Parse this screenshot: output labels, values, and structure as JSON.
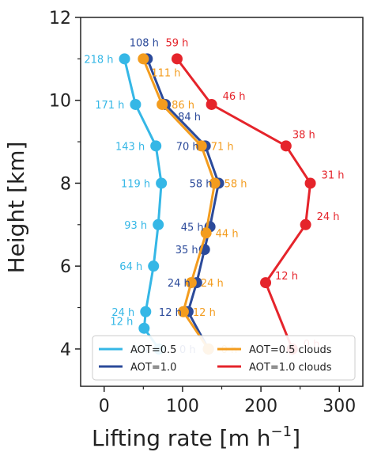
{
  "chart_data": {
    "type": "line",
    "xlabel_main": "Lifting rate [m h",
    "xlabel_sup": "−1",
    "xlabel_close": "]",
    "ylabel": "Height [km]",
    "xlim": [
      -30,
      330
    ],
    "ylim": [
      3.1,
      12
    ],
    "xticks": [
      "0",
      "100",
      "200",
      "300"
    ],
    "xtick_values": [
      0,
      100,
      200,
      300
    ],
    "yticks": [
      "4",
      "6",
      "8",
      "10",
      "12"
    ],
    "ytick_values": [
      4,
      6,
      8,
      10,
      12
    ],
    "grid": false,
    "legend_position": "lower-center",
    "legend_ncol": 2,
    "series": [
      {
        "name": "AOT=0.5",
        "color": "#35b7e6",
        "x": [
          70,
          51,
          53,
          63,
          69,
          73,
          66,
          40,
          26
        ],
        "y": [
          4.0,
          4.5,
          4.9,
          6.0,
          7.0,
          8.0,
          8.9,
          9.9,
          11.0
        ],
        "labels": [
          "0 h",
          "12 h",
          "24 h",
          "64 h",
          "93 h",
          "119 h",
          "143 h",
          "171 h",
          "218 h"
        ]
      },
      {
        "name": "AOT=1.0",
        "color": "#2b4a9a",
        "x": [
          133,
          107,
          118,
          128,
          135,
          146,
          129,
          78,
          55
        ],
        "y": [
          4.0,
          4.9,
          5.6,
          6.4,
          6.95,
          8.0,
          8.9,
          9.9,
          11.0
        ],
        "labels": [
          "0 h",
          "12 h",
          "24 h",
          "35 h",
          "45 h",
          "58 h",
          "70 h",
          "84 h",
          "108 h"
        ]
      },
      {
        "name": "AOT=0.5 clouds",
        "color": "#f39c1e",
        "x": [
          133,
          101,
          111,
          130,
          141,
          124,
          74,
          50
        ],
        "y": [
          4.0,
          4.9,
          5.6,
          6.8,
          8.0,
          8.9,
          9.9,
          11.0
        ],
        "labels": [
          "0 h",
          "12 h",
          "24 h",
          "44 h",
          "58 h",
          "71 h",
          "86 h",
          "111 h"
        ]
      },
      {
        "name": "AOT=1.0 clouds",
        "color": "#e5242b",
        "x": [
          240,
          206,
          257,
          263,
          232,
          137,
          93
        ],
        "y": [
          4.0,
          5.6,
          7.0,
          8.0,
          8.9,
          9.9,
          11.0
        ],
        "labels": [
          "0 h",
          "12 h",
          "24 h",
          "31 h",
          "38 h",
          "46 h",
          "59 h"
        ]
      }
    ]
  }
}
